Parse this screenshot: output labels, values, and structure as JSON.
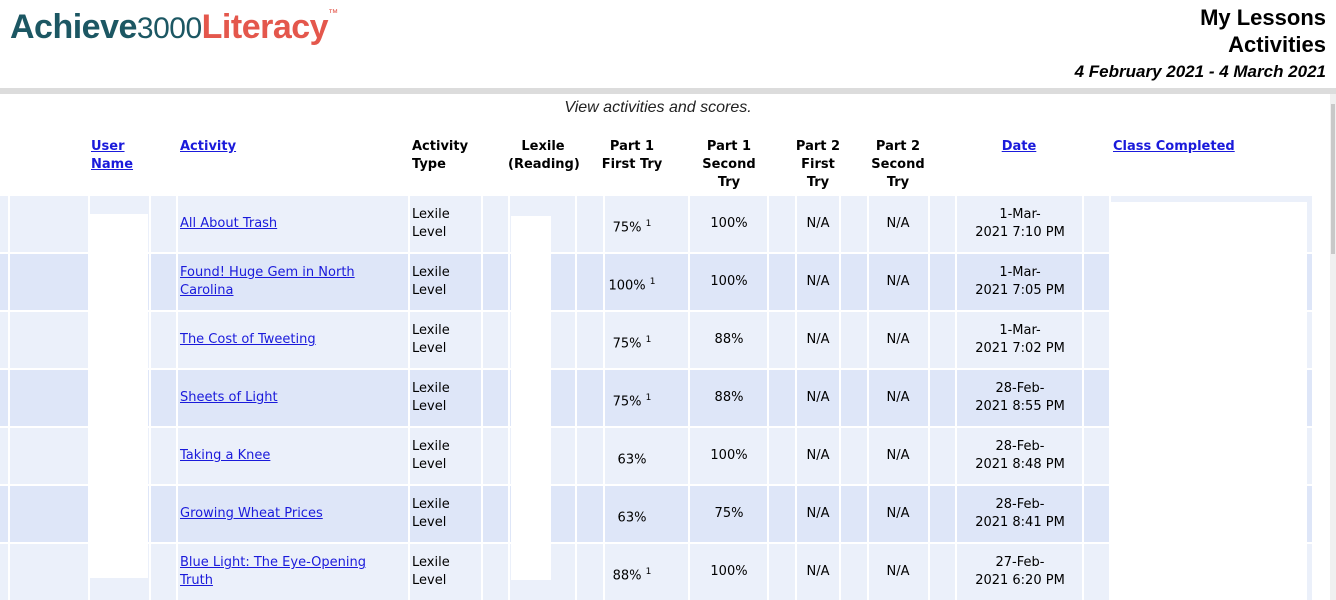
{
  "logo": {
    "part1": "Achieve",
    "part2": "3000",
    "part3": "Literacy",
    "tm": "™"
  },
  "header": {
    "title1": "My Lessons",
    "title2": "Activities",
    "date_range": "4 February 2021 - 4 March 2021"
  },
  "subtitle": "View activities and scores.",
  "columns": {
    "user_name": "User Name",
    "activity": "Activity",
    "activity_type": "Activity Type",
    "lexile": "Lexile (Reading)",
    "p1_first": "Part 1 First Try",
    "p1_second": "Part 1 Second Try",
    "p2_first": "Part 2 First Try",
    "p2_second": "Part 2 Second Try",
    "date": "Date",
    "class_completed": "Class Completed"
  },
  "rows": [
    {
      "activity": "All About Trash",
      "type": "Lexile Level",
      "p1_first": "75%",
      "p1_first_note": "1",
      "p1_second": "100%",
      "p2_first": "N/A",
      "p2_second": "N/A",
      "date1": "1-Mar-",
      "date2": "2021  7:10 PM"
    },
    {
      "activity": "Found! Huge Gem in North Carolina",
      "type": "Lexile Level",
      "p1_first": "100%",
      "p1_first_note": "1",
      "p1_second": "100%",
      "p2_first": "N/A",
      "p2_second": "N/A",
      "date1": "1-Mar-",
      "date2": "2021  7:05 PM"
    },
    {
      "activity": "The Cost of Tweeting",
      "type": "Lexile Level",
      "p1_first": "75%",
      "p1_first_note": "1",
      "p1_second": "88%",
      "p2_first": "N/A",
      "p2_second": "N/A",
      "date1": "1-Mar-",
      "date2": "2021  7:02 PM"
    },
    {
      "activity": "Sheets of Light",
      "type": "Lexile Level",
      "p1_first": "75%",
      "p1_first_note": "1",
      "p1_second": "88%",
      "p2_first": "N/A",
      "p2_second": "N/A",
      "date1": "28-Feb-",
      "date2": "2021  8:55 PM"
    },
    {
      "activity": "Taking a Knee",
      "type": "Lexile Level",
      "p1_first": "63%",
      "p1_first_note": "",
      "p1_second": "100%",
      "p2_first": "N/A",
      "p2_second": "N/A",
      "date1": "28-Feb-",
      "date2": "2021  8:48 PM"
    },
    {
      "activity": "Growing Wheat Prices",
      "type": "Lexile Level",
      "p1_first": "63%",
      "p1_first_note": "",
      "p1_second": "75%",
      "p2_first": "N/A",
      "p2_second": "N/A",
      "date1": "28-Feb-",
      "date2": "2021  8:41 PM"
    },
    {
      "activity": "Blue Light: The Eye-Opening Truth",
      "type": "Lexile Level",
      "p1_first": "88%",
      "p1_first_note": "1",
      "p1_second": "100%",
      "p2_first": "N/A",
      "p2_second": "N/A",
      "date1": "27-Feb-",
      "date2": "2021  6:20 PM"
    }
  ]
}
